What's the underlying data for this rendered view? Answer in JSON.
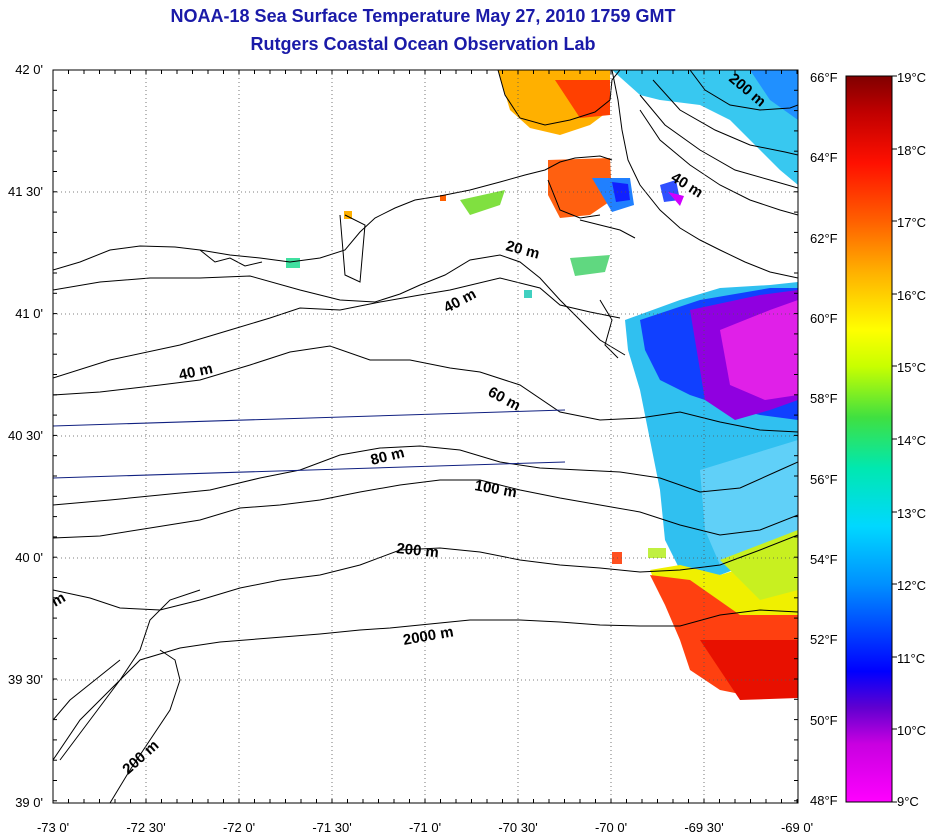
{
  "title": "NOAA-18 Sea Surface Temperature May 27, 2010 1759 GMT",
  "subtitle": "Rutgers Coastal Ocean Observation Lab",
  "longitude_labels": [
    "-73 0'",
    "-72 30'",
    "-72 0'",
    "-71 30'",
    "-71 0'",
    "-70 30'",
    "-70 0'",
    "-69 30'",
    "-69 0'"
  ],
  "latitude_labels": [
    "42 0'",
    "41 30'",
    "41 0'",
    "40 30'",
    "40 0'",
    "39 30'",
    "39 0'"
  ],
  "fahrenheit_labels": [
    "66°F",
    "64°F",
    "62°F",
    "60°F",
    "58°F",
    "56°F",
    "54°F",
    "52°F",
    "50°F",
    "48°F"
  ],
  "celsius_labels": [
    "19°C",
    "18°C",
    "17°C",
    "16°C",
    "15°C",
    "14°C",
    "13°C",
    "12°C",
    "11°C",
    "10°C",
    "9°C"
  ],
  "contour_labels": [
    "200 m",
    "40 m",
    "20 m",
    "40 m",
    "40 m",
    "60 m",
    "80 m",
    "100 m",
    "200 m",
    "2000 m",
    "200 m",
    "m"
  ],
  "colorscale": [
    "#ff00ff",
    "#7a00d0",
    "#0000ff",
    "#0060ff",
    "#00c0ff",
    "#00e0c0",
    "#40e040",
    "#c0ff00",
    "#ffff00",
    "#ffc000",
    "#ff8000",
    "#ff2000",
    "#d00000",
    "#800000"
  ]
}
